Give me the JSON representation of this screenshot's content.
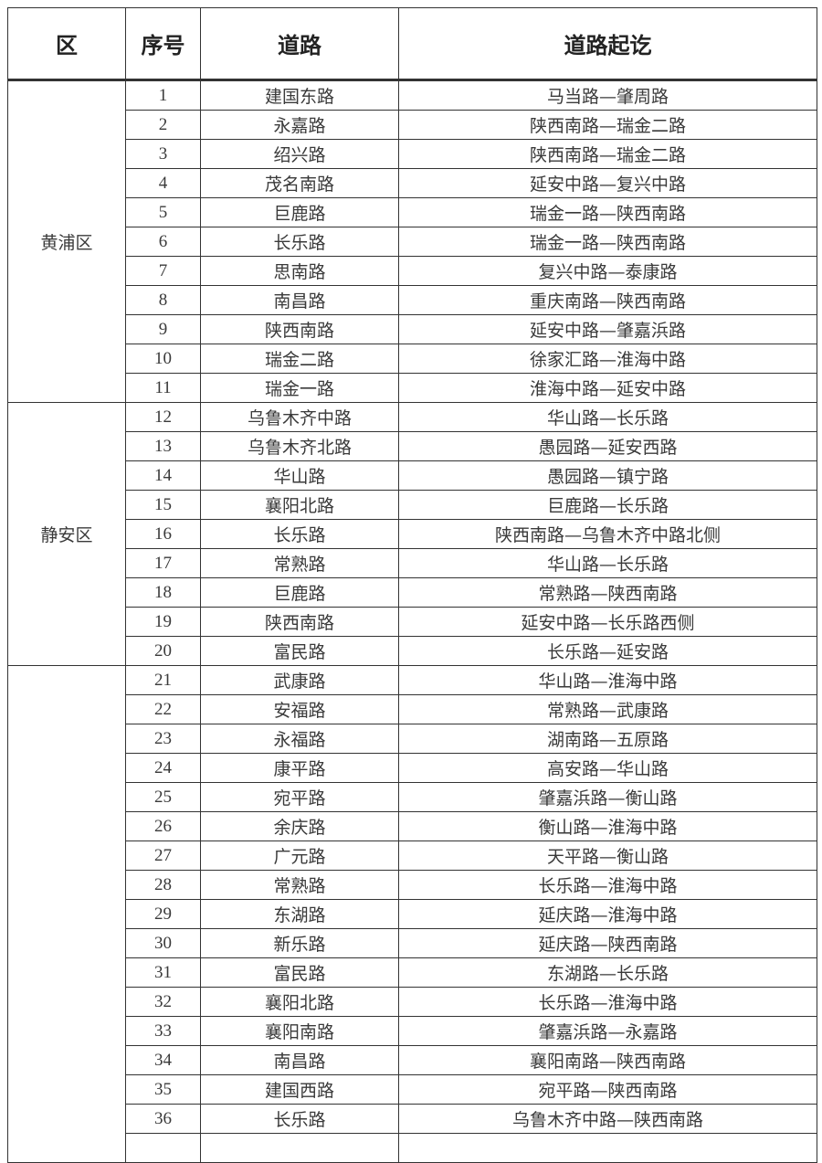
{
  "headers": [
    "区",
    "序号",
    "道路",
    "道路起讫"
  ],
  "groups": [
    {
      "district": "黄浦区",
      "rows": [
        [
          "1",
          "建国东路",
          "马当路—肇周路"
        ],
        [
          "2",
          "永嘉路",
          "陕西南路—瑞金二路"
        ],
        [
          "3",
          "绍兴路",
          "陕西南路—瑞金二路"
        ],
        [
          "4",
          "茂名南路",
          "延安中路—复兴中路"
        ],
        [
          "5",
          "巨鹿路",
          "瑞金一路—陕西南路"
        ],
        [
          "6",
          "长乐路",
          "瑞金一路—陕西南路"
        ],
        [
          "7",
          "思南路",
          "复兴中路—泰康路"
        ],
        [
          "8",
          "南昌路",
          "重庆南路—陕西南路"
        ],
        [
          "9",
          "陕西南路",
          "延安中路—肇嘉浜路"
        ],
        [
          "10",
          "瑞金二路",
          "徐家汇路—淮海中路"
        ],
        [
          "11",
          "瑞金一路",
          "淮海中路—延安中路"
        ]
      ]
    },
    {
      "district": "静安区",
      "rows": [
        [
          "12",
          "乌鲁木齐中路",
          "华山路—长乐路"
        ],
        [
          "13",
          "乌鲁木齐北路",
          "愚园路—延安西路"
        ],
        [
          "14",
          "华山路",
          "愚园路—镇宁路"
        ],
        [
          "15",
          "襄阳北路",
          "巨鹿路—长乐路"
        ],
        [
          "16",
          "长乐路",
          "陕西南路—乌鲁木齐中路北侧"
        ],
        [
          "17",
          "常熟路",
          "华山路—长乐路"
        ],
        [
          "18",
          "巨鹿路",
          "常熟路—陕西南路"
        ],
        [
          "19",
          "陕西南路",
          "延安中路—长乐路西侧"
        ],
        [
          "20",
          "富民路",
          "长乐路—延安路"
        ]
      ]
    },
    {
      "district": "",
      "rows": [
        [
          "21",
          "武康路",
          "华山路—淮海中路"
        ],
        [
          "22",
          "安福路",
          "常熟路—武康路"
        ],
        [
          "23",
          "永福路",
          "湖南路—五原路"
        ],
        [
          "24",
          "康平路",
          "高安路—华山路"
        ],
        [
          "25",
          "宛平路",
          "肇嘉浜路—衡山路"
        ],
        [
          "26",
          "余庆路",
          "衡山路—淮海中路"
        ],
        [
          "27",
          "广元路",
          "天平路—衡山路"
        ],
        [
          "28",
          "常熟路",
          "长乐路—淮海中路"
        ],
        [
          "29",
          "东湖路",
          "延庆路—淮海中路"
        ],
        [
          "30",
          "新乐路",
          "延庆路—陕西南路"
        ],
        [
          "31",
          "富民路",
          "东湖路—长乐路"
        ],
        [
          "32",
          "襄阳北路",
          "长乐路—淮海中路"
        ],
        [
          "33",
          "襄阳南路",
          "肇嘉浜路—永嘉路"
        ],
        [
          "34",
          "南昌路",
          "襄阳南路—陕西南路"
        ],
        [
          "35",
          "建国西路",
          "宛平路—陕西南路"
        ],
        [
          "36",
          "长乐路",
          "乌鲁木齐中路—陕西南路"
        ]
      ]
    }
  ]
}
